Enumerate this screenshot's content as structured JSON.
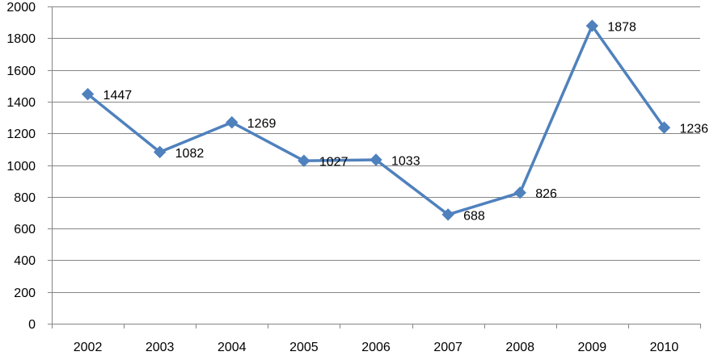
{
  "chart_data": {
    "type": "line",
    "title": "",
    "xlabel": "",
    "ylabel": "",
    "categories": [
      "2002",
      "2003",
      "2004",
      "2005",
      "2006",
      "2007",
      "2008",
      "2009",
      "2010"
    ],
    "values": [
      1447,
      1082,
      1269,
      1027,
      1033,
      688,
      826,
      1878,
      1236
    ],
    "data_labels": [
      "1447",
      "1082",
      "1269",
      "1027",
      "1033",
      "688",
      "826",
      "1878",
      "1236"
    ],
    "ylim": [
      0,
      2000
    ],
    "yticks": [
      0,
      200,
      400,
      600,
      800,
      1000,
      1200,
      1400,
      1600,
      1800,
      2000
    ],
    "ytick_labels": [
      "0",
      "200",
      "400",
      "600",
      "800",
      "1000",
      "1200",
      "1400",
      "1600",
      "1800",
      "2000"
    ],
    "grid": "horizontal",
    "legend": "none",
    "marker": "diamond",
    "colors": {
      "series": "#4F81BD",
      "grid": "#868686",
      "axis": "#868686"
    }
  }
}
